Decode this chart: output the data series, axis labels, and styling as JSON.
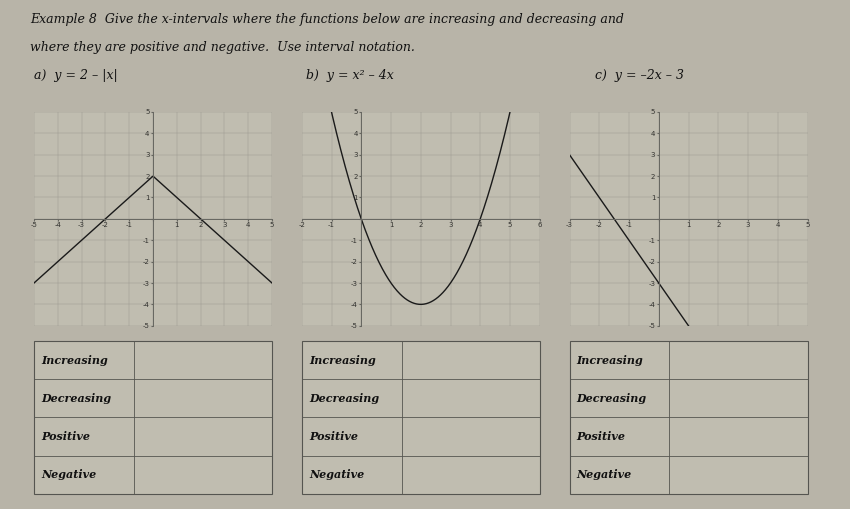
{
  "title_line1": "Example 8  Give the x-intervals where the functions below are increasing and decreasing and",
  "title_line2": "where they are positive and negative.  Use interval notation.",
  "func_labels_a": "a)  y = 2 – |x|",
  "func_labels_b": "b)  y = x² – 4x",
  "func_labels_c": "c)  y = –2x – 3",
  "bg_color": "#b8b4a8",
  "plot_bg": "#c0bdb0",
  "grid_color": "#9a9890",
  "line_color": "#1a1a1a",
  "table_bg": "#c0bdb0",
  "table_border": "#555550",
  "text_color": "#111111",
  "table_rows": [
    "Increasing",
    "Decreasing",
    "Positive",
    "Negative"
  ],
  "xlim_a": [
    -5,
    5
  ],
  "ylim_a": [
    -5,
    5
  ],
  "xlim_b": [
    -2,
    6
  ],
  "ylim_b": [
    -5,
    5
  ],
  "xlim_c": [
    -3,
    5
  ],
  "ylim_c": [
    -5,
    5
  ],
  "font_size_title": 9,
  "font_size_label": 9,
  "font_size_table": 8,
  "font_size_tick": 5
}
